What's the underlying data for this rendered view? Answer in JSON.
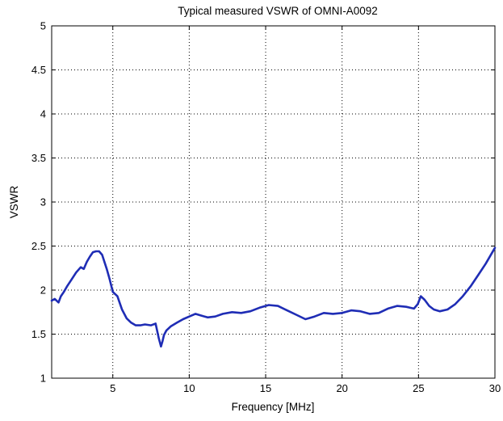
{
  "chart_data": {
    "type": "line",
    "title": "Typical measured VSWR of OMNI-A0092",
    "xlabel": "Frequency [MHz]",
    "ylabel": "VSWR",
    "xlim": [
      1,
      30
    ],
    "ylim": [
      1,
      5
    ],
    "xticks": [
      5,
      10,
      15,
      20,
      25,
      30
    ],
    "yticks": [
      1,
      1.5,
      2,
      2.5,
      3,
      3.5,
      4,
      4.5,
      5
    ],
    "xtick_labels": [
      "5",
      "10",
      "15",
      "20",
      "25",
      "30"
    ],
    "ytick_labels": [
      "1",
      "1.5",
      "2",
      "2.5",
      "3",
      "3.5",
      "4",
      "4.5",
      "5"
    ],
    "grid": true,
    "grid_style": "dotted",
    "series": [
      {
        "color": "#1f2db5",
        "x": [
          1.0,
          1.2,
          1.45,
          1.6,
          1.8,
          2.0,
          2.3,
          2.6,
          2.9,
          3.1,
          3.3,
          3.5,
          3.7,
          3.9,
          4.1,
          4.3,
          4.6,
          4.8,
          5.0,
          5.3,
          5.6,
          5.9,
          6.2,
          6.5,
          6.8,
          7.1,
          7.5,
          7.8,
          8.0,
          8.15,
          8.25,
          8.35,
          8.5,
          8.8,
          9.2,
          9.6,
          10.0,
          10.4,
          10.8,
          11.2,
          11.7,
          12.2,
          12.8,
          13.4,
          14.0,
          14.6,
          15.2,
          15.8,
          16.4,
          17.0,
          17.6,
          18.2,
          18.8,
          19.4,
          20.0,
          20.6,
          21.2,
          21.8,
          22.4,
          23.0,
          23.6,
          24.2,
          24.7,
          24.95,
          25.15,
          25.4,
          25.7,
          26.0,
          26.4,
          26.9,
          27.4,
          27.9,
          28.4,
          28.9,
          29.4,
          30.0
        ],
        "y": [
          1.88,
          1.9,
          1.86,
          1.93,
          1.98,
          2.04,
          2.12,
          2.2,
          2.26,
          2.24,
          2.32,
          2.38,
          2.43,
          2.44,
          2.44,
          2.4,
          2.24,
          2.12,
          1.98,
          1.93,
          1.78,
          1.68,
          1.63,
          1.6,
          1.6,
          1.61,
          1.6,
          1.62,
          1.46,
          1.36,
          1.42,
          1.49,
          1.54,
          1.59,
          1.63,
          1.67,
          1.7,
          1.73,
          1.71,
          1.69,
          1.7,
          1.73,
          1.75,
          1.74,
          1.76,
          1.8,
          1.83,
          1.82,
          1.77,
          1.72,
          1.67,
          1.7,
          1.74,
          1.73,
          1.74,
          1.77,
          1.76,
          1.73,
          1.74,
          1.79,
          1.82,
          1.81,
          1.79,
          1.84,
          1.93,
          1.89,
          1.82,
          1.78,
          1.76,
          1.78,
          1.84,
          1.93,
          2.04,
          2.17,
          2.3,
          2.48
        ]
      }
    ]
  }
}
